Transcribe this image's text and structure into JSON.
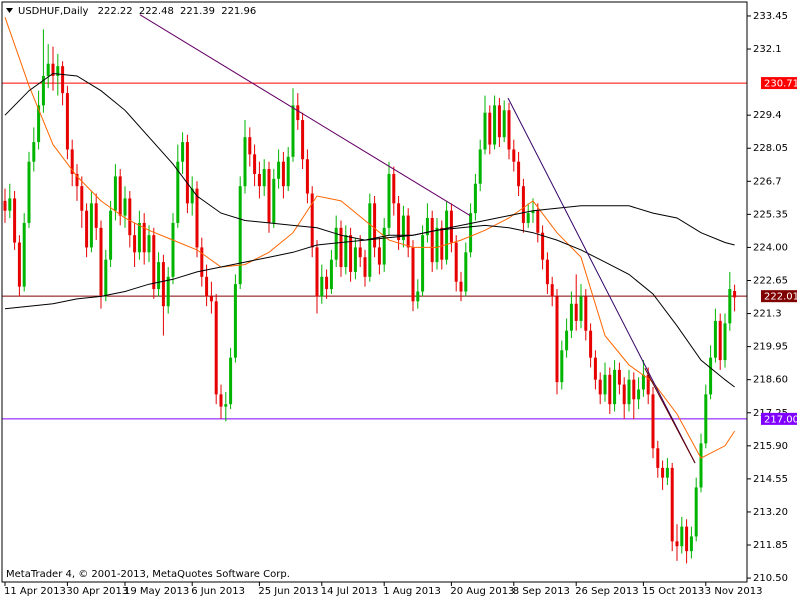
{
  "chart_data": {
    "type": "candlestick",
    "title": "USDHUF,Daily",
    "footer": "MetaTrader 4, © 2001-2013, MetaQuotes Software Corp.",
    "up_color": "#00b400",
    "down_color": "#e60000",
    "ylim": [
      210.34,
      234.02
    ],
    "yticks": [
      233.45,
      232.1,
      229.4,
      228.05,
      226.7,
      225.35,
      {
        "value": 224,
        "label": "224.00"
      },
      222.65,
      221.3,
      219.95,
      {
        "value": 218.6,
        "label": "218.60"
      },
      217.25,
      {
        "value": 215.9,
        "label": "215.90"
      },
      214.55,
      {
        "value": 213.2,
        "label": "213.20"
      },
      211.85,
      {
        "value": 210.5,
        "label": "210.50"
      }
    ],
    "categories": [
      "11 Apr 2013",
      null,
      null,
      null,
      null,
      null,
      null,
      null,
      null,
      null,
      null,
      null,
      null,
      "30 Apr 2013",
      null,
      null,
      null,
      null,
      null,
      null,
      null,
      null,
      null,
      null,
      null,
      "19 May 2013",
      null,
      null,
      null,
      null,
      null,
      null,
      null,
      null,
      null,
      null,
      null,
      null,
      null,
      "6 Jun 2013",
      null,
      null,
      null,
      null,
      null,
      null,
      null,
      null,
      null,
      null,
      null,
      null,
      null,
      "25 Jun 2013",
      null,
      null,
      null,
      null,
      null,
      null,
      null,
      null,
      null,
      null,
      null,
      null,
      "14 Jul 2013",
      null,
      null,
      null,
      null,
      null,
      null,
      null,
      null,
      null,
      null,
      null,
      null,
      "1 Aug 2013",
      null,
      null,
      null,
      null,
      null,
      null,
      null,
      null,
      null,
      null,
      null,
      null,
      null,
      "20 Aug 2013",
      null,
      null,
      null,
      null,
      null,
      null,
      null,
      null,
      null,
      null,
      null,
      null,
      "8 Sep 2013",
      null,
      null,
      null,
      null,
      null,
      null,
      null,
      null,
      null,
      null,
      null,
      null,
      "26 Sep 2013",
      null,
      null,
      null,
      null,
      null,
      null,
      null,
      null,
      null,
      null,
      null,
      null,
      null,
      "15 Oct 2013",
      null,
      null,
      null,
      null,
      null,
      null,
      null,
      null,
      null,
      null,
      null,
      null,
      "3 Nov 2013",
      null,
      null,
      null,
      null,
      null,
      null
    ],
    "candles": [
      [
        225.9,
        226.4,
        225.0,
        225.5
      ],
      [
        225.5,
        226.6,
        225.2,
        226.0
      ],
      [
        226.0,
        226.3,
        223.9,
        224.2
      ],
      [
        224.2,
        224.5,
        222.0,
        222.4
      ],
      [
        222.4,
        225.4,
        222.2,
        225.0
      ],
      [
        225.0,
        227.9,
        224.8,
        227.5
      ],
      [
        227.5,
        228.9,
        227.1,
        228.3
      ],
      [
        228.3,
        230.4,
        228.0,
        229.8
      ],
      [
        229.8,
        232.9,
        229.5,
        231.0
      ],
      [
        231.0,
        232.3,
        230.5,
        231.5
      ],
      [
        231.5,
        232.2,
        230.4,
        231.0
      ],
      [
        231.0,
        231.9,
        230.2,
        231.4
      ],
      [
        231.4,
        231.6,
        229.8,
        230.3
      ],
      [
        230.3,
        230.6,
        227.6,
        228.0
      ],
      [
        228.0,
        228.4,
        226.5,
        227.0
      ],
      [
        227.0,
        227.4,
        225.9,
        226.5
      ],
      [
        226.5,
        226.9,
        224.8,
        225.5
      ],
      [
        225.5,
        225.8,
        223.6,
        224.0
      ],
      [
        224.0,
        226.3,
        223.8,
        225.8
      ],
      [
        225.8,
        226.2,
        224.3,
        224.8
      ],
      [
        224.8,
        225.1,
        221.5,
        222.0
      ],
      [
        222.0,
        223.9,
        221.8,
        223.5
      ],
      [
        223.5,
        225.9,
        223.2,
        225.5
      ],
      [
        225.5,
        227.4,
        225.1,
        226.9
      ],
      [
        226.9,
        227.2,
        224.9,
        225.3
      ],
      [
        225.3,
        226.5,
        224.8,
        226.0
      ],
      [
        226.0,
        226.3,
        224.0,
        224.5
      ],
      [
        224.5,
        225.0,
        223.2,
        223.8
      ],
      [
        223.8,
        225.5,
        223.5,
        225.0
      ],
      [
        225.0,
        225.4,
        223.3,
        223.8
      ],
      [
        223.8,
        224.9,
        223.4,
        224.5
      ],
      [
        224.5,
        224.8,
        221.9,
        222.3
      ],
      [
        222.3,
        223.8,
        222.0,
        223.4
      ],
      [
        223.4,
        223.7,
        220.4,
        221.6
      ],
      [
        221.6,
        223.2,
        221.3,
        222.8
      ],
      [
        222.8,
        225.4,
        222.5,
        225.0
      ],
      [
        225.0,
        228.2,
        224.8,
        227.5
      ],
      [
        227.5,
        228.7,
        227.0,
        228.3
      ],
      [
        228.3,
        228.6,
        225.4,
        225.8
      ],
      [
        225.8,
        226.9,
        225.3,
        226.4
      ],
      [
        226.4,
        226.7,
        223.6,
        224.0
      ],
      [
        224.0,
        224.4,
        222.4,
        222.8
      ],
      [
        222.8,
        223.3,
        221.6,
        222.0
      ],
      [
        222.0,
        222.6,
        221.3,
        221.8
      ],
      [
        221.8,
        222.1,
        217.6,
        218.0
      ],
      [
        218.0,
        218.4,
        217.0,
        217.5
      ],
      [
        217.5,
        218.1,
        216.9,
        217.6
      ],
      [
        217.6,
        219.9,
        217.4,
        219.5
      ],
      [
        219.5,
        222.9,
        219.3,
        222.5
      ],
      [
        222.5,
        226.9,
        222.3,
        226.5
      ],
      [
        226.5,
        229.2,
        226.2,
        228.5
      ],
      [
        228.5,
        228.9,
        227.3,
        227.8
      ],
      [
        227.8,
        228.2,
        226.5,
        227.0
      ],
      [
        227.0,
        227.5,
        226.0,
        226.5
      ],
      [
        226.5,
        227.6,
        226.1,
        227.2
      ],
      [
        227.2,
        227.5,
        224.6,
        225.0
      ],
      [
        225.0,
        227.2,
        224.8,
        226.8
      ],
      [
        226.8,
        228.0,
        226.4,
        227.5
      ],
      [
        227.5,
        227.9,
        226.0,
        226.5
      ],
      [
        226.5,
        228.1,
        226.3,
        227.7
      ],
      [
        227.7,
        230.5,
        227.5,
        229.8
      ],
      [
        229.8,
        230.3,
        228.8,
        229.2
      ],
      [
        229.2,
        229.5,
        227.2,
        227.6
      ],
      [
        227.6,
        228.0,
        225.8,
        226.2
      ],
      [
        226.2,
        226.5,
        223.6,
        224.0
      ],
      [
        224.0,
        224.3,
        221.3,
        222.0
      ],
      [
        222.0,
        223.3,
        221.7,
        222.8
      ],
      [
        222.8,
        223.1,
        221.9,
        222.3
      ],
      [
        222.3,
        223.9,
        222.1,
        223.5
      ],
      [
        223.5,
        225.3,
        223.2,
        224.8
      ],
      [
        224.8,
        225.1,
        222.8,
        223.2
      ],
      [
        223.2,
        224.9,
        222.9,
        224.5
      ],
      [
        224.5,
        224.8,
        222.6,
        223.0
      ],
      [
        223.0,
        224.4,
        222.7,
        224.0
      ],
      [
        224.0,
        224.5,
        223.2,
        223.6
      ],
      [
        223.6,
        223.9,
        222.4,
        222.8
      ],
      [
        222.8,
        226.2,
        222.6,
        225.8
      ],
      [
        225.8,
        226.1,
        223.6,
        224.0
      ],
      [
        224.0,
        224.4,
        222.9,
        223.3
      ],
      [
        223.3,
        225.2,
        223.0,
        224.8
      ],
      [
        224.8,
        227.5,
        224.5,
        227.0
      ],
      [
        227.0,
        227.3,
        225.3,
        225.8
      ],
      [
        225.8,
        226.1,
        223.9,
        224.3
      ],
      [
        224.3,
        225.7,
        224.0,
        225.3
      ],
      [
        225.3,
        225.6,
        223.6,
        224.0
      ],
      [
        224.0,
        224.3,
        221.4,
        221.8
      ],
      [
        221.8,
        222.7,
        221.5,
        222.2
      ],
      [
        222.2,
        224.9,
        222.0,
        224.5
      ],
      [
        224.5,
        225.8,
        224.2,
        225.2
      ],
      [
        225.2,
        225.5,
        223.0,
        223.4
      ],
      [
        223.4,
        225.2,
        223.1,
        224.8
      ],
      [
        224.8,
        225.1,
        223.1,
        223.5
      ],
      [
        223.5,
        225.9,
        223.3,
        225.5
      ],
      [
        225.5,
        225.8,
        223.8,
        224.2
      ],
      [
        224.2,
        224.5,
        222.2,
        222.6
      ],
      [
        222.6,
        223.0,
        221.8,
        222.2
      ],
      [
        222.2,
        224.2,
        222.0,
        223.8
      ],
      [
        223.8,
        225.8,
        223.6,
        225.4
      ],
      [
        225.4,
        227.0,
        225.1,
        226.6
      ],
      [
        226.6,
        228.4,
        226.3,
        228.0
      ],
      [
        228.0,
        230.2,
        227.8,
        229.5
      ],
      [
        229.5,
        229.8,
        227.8,
        228.2
      ],
      [
        228.2,
        230.2,
        228.0,
        229.8
      ],
      [
        229.8,
        230.1,
        228.1,
        228.5
      ],
      [
        228.5,
        230.0,
        228.3,
        229.6
      ],
      [
        229.6,
        229.9,
        227.6,
        228.0
      ],
      [
        228.0,
        228.4,
        227.1,
        227.5
      ],
      [
        227.5,
        227.9,
        226.1,
        226.5
      ],
      [
        226.5,
        226.8,
        224.6,
        225.0
      ],
      [
        225.0,
        225.8,
        224.8,
        225.4
      ],
      [
        225.4,
        226.0,
        225.0,
        225.5
      ],
      [
        225.5,
        225.8,
        224.2,
        224.6
      ],
      [
        224.6,
        224.9,
        223.1,
        223.5
      ],
      [
        223.5,
        223.8,
        222.1,
        222.5
      ],
      [
        222.5,
        222.8,
        221.6,
        222.0
      ],
      [
        222.0,
        222.3,
        218.0,
        218.5
      ],
      [
        218.5,
        220.2,
        218.2,
        219.8
      ],
      [
        219.8,
        221.1,
        219.5,
        220.6
      ],
      [
        220.6,
        222.2,
        220.3,
        221.7
      ],
      [
        221.7,
        222.9,
        220.6,
        221.0
      ],
      [
        221.0,
        222.5,
        220.7,
        222.0
      ],
      [
        222.0,
        222.3,
        220.2,
        220.6
      ],
      [
        220.6,
        220.9,
        219.1,
        219.5
      ],
      [
        219.5,
        219.8,
        218.2,
        218.6
      ],
      [
        218.6,
        218.9,
        217.6,
        218.0
      ],
      [
        218.0,
        219.3,
        217.7,
        218.8
      ],
      [
        218.8,
        219.1,
        217.2,
        217.6
      ],
      [
        217.6,
        219.4,
        217.3,
        219.0
      ],
      [
        219.0,
        219.3,
        218.0,
        218.4
      ],
      [
        218.4,
        218.7,
        217.0,
        217.6
      ],
      [
        217.6,
        219.0,
        217.3,
        218.6
      ],
      [
        218.6,
        218.9,
        217.0,
        217.8
      ],
      [
        217.8,
        218.7,
        217.4,
        218.2
      ],
      [
        218.2,
        219.4,
        217.9,
        218.8
      ],
      [
        218.8,
        219.1,
        217.6,
        218.0
      ],
      [
        218.0,
        218.3,
        215.4,
        215.8
      ],
      [
        215.8,
        216.1,
        214.6,
        215.0
      ],
      [
        215.0,
        215.3,
        214.1,
        214.6
      ],
      [
        214.6,
        215.4,
        214.3,
        215.0
      ],
      [
        215.0,
        215.2,
        211.6,
        212.0
      ],
      [
        212.0,
        212.7,
        211.2,
        211.8
      ],
      [
        211.8,
        213.0,
        211.5,
        212.6
      ],
      [
        212.6,
        212.9,
        211.1,
        211.6
      ],
      [
        211.6,
        212.6,
        211.3,
        212.2
      ],
      [
        212.2,
        214.6,
        212.0,
        214.2
      ],
      [
        214.2,
        216.4,
        214.0,
        216.0
      ],
      [
        216.0,
        218.4,
        215.8,
        218.0
      ],
      [
        218.0,
        220.0,
        217.8,
        219.5
      ],
      [
        219.5,
        221.5,
        219.3,
        221.0
      ],
      [
        221.0,
        221.3,
        219.0,
        219.4
      ],
      [
        219.4,
        221.3,
        219.1,
        220.9
      ],
      [
        220.9,
        223.0,
        220.6,
        222.3
      ],
      [
        222.22,
        222.48,
        221.39,
        221.96
      ]
    ],
    "series": [
      {
        "color": "#ff6600",
        "x": [
          0,
          5,
          10,
          15,
          20,
          25,
          30,
          35,
          40,
          45,
          50,
          55,
          60,
          65,
          70,
          75,
          80,
          85,
          90,
          95,
          100,
          105,
          110,
          115,
          120,
          125,
          130,
          135,
          140,
          145,
          150,
          152
        ],
        "values": [
          233.4,
          230.6,
          228.2,
          226.9,
          225.9,
          225.2,
          224.7,
          224.3,
          223.9,
          223.2,
          223.3,
          223.8,
          224.6,
          226.1,
          225.9,
          225.1,
          224.3,
          224.0,
          224.0,
          224.3,
          224.7,
          225.2,
          225.9,
          224.6,
          223.6,
          220.4,
          219.2,
          218.5,
          217.2,
          215.4,
          215.9,
          216.5
        ]
      },
      {
        "color": "#000000",
        "x": [
          0,
          5,
          10,
          15,
          20,
          25,
          30,
          35,
          40,
          45,
          50,
          55,
          60,
          65,
          70,
          75,
          80,
          85,
          90,
          95,
          100,
          105,
          110,
          115,
          120,
          125,
          130,
          135,
          140,
          145,
          150,
          152
        ],
        "values": [
          229.4,
          230.4,
          231.1,
          231.0,
          230.4,
          229.6,
          228.5,
          227.4,
          226.1,
          225.4,
          225.1,
          225.0,
          224.9,
          224.8,
          224.5,
          224.3,
          224.5,
          224.5,
          224.7,
          224.8,
          224.9,
          224.8,
          224.6,
          224.3,
          223.9,
          223.4,
          222.9,
          222.1,
          220.8,
          219.4,
          218.6,
          218.3
        ]
      },
      {
        "color": "#000000",
        "x": [
          0,
          5,
          10,
          15,
          20,
          25,
          30,
          35,
          40,
          45,
          50,
          55,
          60,
          65,
          70,
          75,
          80,
          85,
          90,
          95,
          100,
          105,
          110,
          115,
          120,
          125,
          130,
          135,
          140,
          145,
          150,
          152
        ],
        "values": [
          221.5,
          221.6,
          221.7,
          221.9,
          222.0,
          222.2,
          222.5,
          222.7,
          223.0,
          223.2,
          223.4,
          223.6,
          223.8,
          224.1,
          224.2,
          224.3,
          224.4,
          224.5,
          224.7,
          224.9,
          225.1,
          225.3,
          225.5,
          225.6,
          225.7,
          225.7,
          225.7,
          225.4,
          225.2,
          224.6,
          224.2,
          224.1
        ]
      }
    ],
    "trendlines": [
      {
        "color": "#660066",
        "x": [
          28.1,
          96.9
        ],
        "values": [
          233.5,
          225.3
        ]
      },
      {
        "color": "#330066",
        "x": [
          104.8,
          143.75
        ],
        "values": [
          230.1,
          215.2
        ]
      },
      {
        "color": "#660000",
        "x": [
          133.3,
          143.75
        ],
        "values": [
          219.07,
          215.2
        ]
      }
    ],
    "levels": [
      {
        "value": 230.71,
        "color": "#ff0000"
      },
      {
        "value": 222.01,
        "color": "#800000"
      },
      {
        "value": 217,
        "label": "217.00",
        "color": "#8000ff"
      }
    ]
  }
}
